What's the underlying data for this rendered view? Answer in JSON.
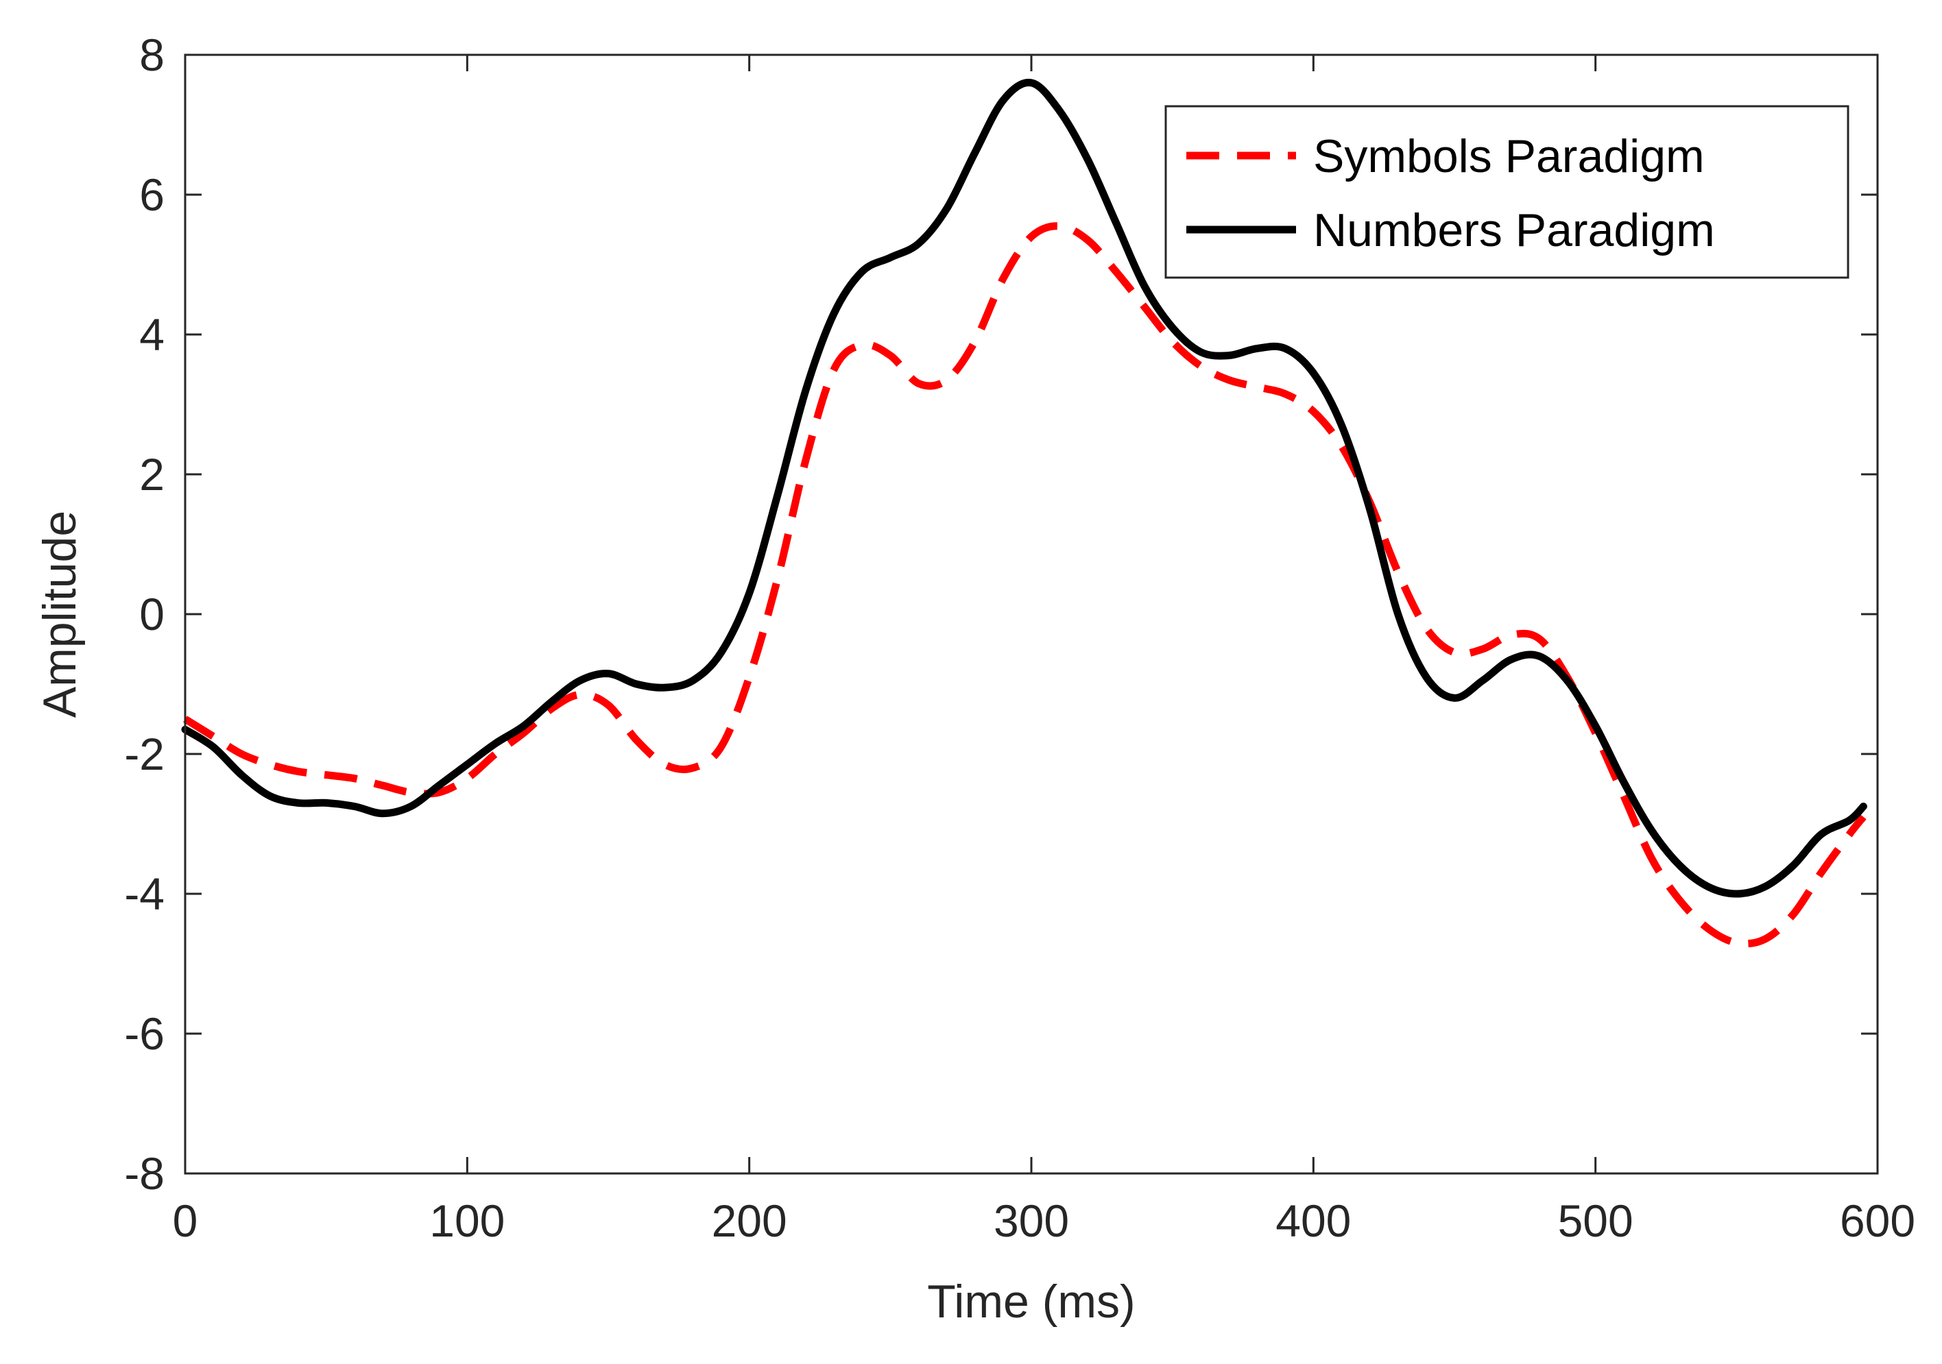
{
  "chart_data": {
    "type": "line",
    "title": "",
    "xlabel": "Time (ms)",
    "ylabel": "Amplitude",
    "xlim": [
      0,
      600
    ],
    "ylim": [
      -8,
      8
    ],
    "xticks": [
      0,
      100,
      200,
      300,
      400,
      500,
      600
    ],
    "yticks": [
      -8,
      -6,
      -4,
      -2,
      0,
      2,
      4,
      6,
      8
    ],
    "xtick_labels": [
      "0",
      "100",
      "200",
      "300",
      "400",
      "500",
      "600"
    ],
    "ytick_labels": [
      "-8",
      "-6",
      "-4",
      "-2",
      "0",
      "2",
      "4",
      "6",
      "8"
    ],
    "grid": false,
    "legend_position": "top-right",
    "series": [
      {
        "name": "Symbols Paradigm",
        "color": "#ff0000",
        "style": "dashed",
        "points": [
          [
            0,
            -1.5
          ],
          [
            10,
            -1.75
          ],
          [
            20,
            -2.0
          ],
          [
            30,
            -2.15
          ],
          [
            40,
            -2.25
          ],
          [
            50,
            -2.3
          ],
          [
            60,
            -2.35
          ],
          [
            70,
            -2.45
          ],
          [
            80,
            -2.55
          ],
          [
            90,
            -2.55
          ],
          [
            100,
            -2.35
          ],
          [
            110,
            -2.0
          ],
          [
            120,
            -1.7
          ],
          [
            130,
            -1.35
          ],
          [
            140,
            -1.15
          ],
          [
            150,
            -1.3
          ],
          [
            160,
            -1.8
          ],
          [
            170,
            -2.15
          ],
          [
            180,
            -2.2
          ],
          [
            190,
            -1.9
          ],
          [
            200,
            -0.9
          ],
          [
            210,
            0.5
          ],
          [
            220,
            2.2
          ],
          [
            230,
            3.5
          ],
          [
            240,
            3.85
          ],
          [
            250,
            3.7
          ],
          [
            260,
            3.3
          ],
          [
            270,
            3.35
          ],
          [
            280,
            3.9
          ],
          [
            290,
            4.8
          ],
          [
            300,
            5.4
          ],
          [
            310,
            5.55
          ],
          [
            320,
            5.35
          ],
          [
            330,
            4.9
          ],
          [
            340,
            4.4
          ],
          [
            350,
            3.9
          ],
          [
            360,
            3.55
          ],
          [
            370,
            3.35
          ],
          [
            380,
            3.25
          ],
          [
            390,
            3.15
          ],
          [
            400,
            2.9
          ],
          [
            410,
            2.4
          ],
          [
            420,
            1.6
          ],
          [
            430,
            0.6
          ],
          [
            440,
            -0.2
          ],
          [
            450,
            -0.55
          ],
          [
            460,
            -0.5
          ],
          [
            470,
            -0.3
          ],
          [
            480,
            -0.35
          ],
          [
            490,
            -0.9
          ],
          [
            500,
            -1.7
          ],
          [
            510,
            -2.6
          ],
          [
            520,
            -3.5
          ],
          [
            530,
            -4.1
          ],
          [
            540,
            -4.5
          ],
          [
            550,
            -4.7
          ],
          [
            560,
            -4.65
          ],
          [
            570,
            -4.3
          ],
          [
            580,
            -3.7
          ],
          [
            590,
            -3.15
          ],
          [
            595,
            -2.9
          ]
        ]
      },
      {
        "name": "Numbers Paradigm",
        "color": "#000000",
        "style": "solid",
        "points": [
          [
            0,
            -1.65
          ],
          [
            10,
            -1.9
          ],
          [
            20,
            -2.3
          ],
          [
            30,
            -2.6
          ],
          [
            40,
            -2.7
          ],
          [
            50,
            -2.7
          ],
          [
            60,
            -2.75
          ],
          [
            70,
            -2.85
          ],
          [
            80,
            -2.75
          ],
          [
            90,
            -2.45
          ],
          [
            100,
            -2.15
          ],
          [
            110,
            -1.85
          ],
          [
            120,
            -1.6
          ],
          [
            130,
            -1.25
          ],
          [
            140,
            -0.95
          ],
          [
            150,
            -0.85
          ],
          [
            160,
            -1.0
          ],
          [
            170,
            -1.05
          ],
          [
            180,
            -0.95
          ],
          [
            190,
            -0.55
          ],
          [
            200,
            0.3
          ],
          [
            210,
            1.7
          ],
          [
            220,
            3.2
          ],
          [
            230,
            4.3
          ],
          [
            240,
            4.9
          ],
          [
            250,
            5.1
          ],
          [
            260,
            5.3
          ],
          [
            270,
            5.8
          ],
          [
            280,
            6.6
          ],
          [
            290,
            7.35
          ],
          [
            300,
            7.6
          ],
          [
            310,
            7.2
          ],
          [
            320,
            6.5
          ],
          [
            330,
            5.6
          ],
          [
            340,
            4.7
          ],
          [
            350,
            4.1
          ],
          [
            360,
            3.75
          ],
          [
            370,
            3.7
          ],
          [
            380,
            3.8
          ],
          [
            390,
            3.8
          ],
          [
            400,
            3.45
          ],
          [
            410,
            2.7
          ],
          [
            420,
            1.5
          ],
          [
            430,
            0.0
          ],
          [
            440,
            -0.9
          ],
          [
            450,
            -1.2
          ],
          [
            460,
            -0.95
          ],
          [
            470,
            -0.65
          ],
          [
            480,
            -0.6
          ],
          [
            490,
            -0.95
          ],
          [
            500,
            -1.6
          ],
          [
            510,
            -2.4
          ],
          [
            520,
            -3.1
          ],
          [
            530,
            -3.6
          ],
          [
            540,
            -3.9
          ],
          [
            550,
            -4.0
          ],
          [
            560,
            -3.9
          ],
          [
            570,
            -3.6
          ],
          [
            580,
            -3.15
          ],
          [
            590,
            -2.95
          ],
          [
            595,
            -2.75
          ]
        ]
      }
    ]
  }
}
